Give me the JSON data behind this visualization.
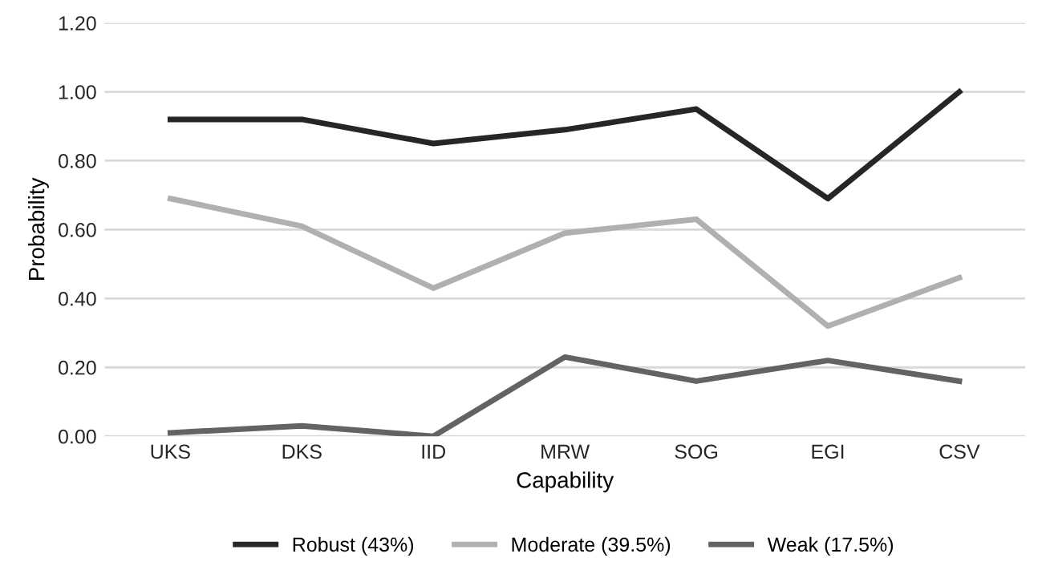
{
  "chart_data": {
    "type": "line",
    "xlabel": "Capability",
    "ylabel": "Probability",
    "categories": [
      "UKS",
      "DKS",
      "IID",
      "MRW",
      "SOG",
      "EGI",
      "CSV"
    ],
    "series": [
      {
        "name": "Robust (43%)",
        "color": "#262626",
        "values": [
          0.92,
          0.92,
          0.85,
          0.89,
          0.95,
          0.69,
          1.0
        ]
      },
      {
        "name": "Moderate (39.5%)",
        "color": "#b0b0b0",
        "values": [
          0.69,
          0.61,
          0.43,
          0.59,
          0.63,
          0.32,
          0.46
        ]
      },
      {
        "name": "Weak (17.5%)",
        "color": "#636363",
        "values": [
          0.01,
          0.03,
          0.0,
          0.23,
          0.16,
          0.22,
          0.16
        ]
      }
    ],
    "ylim": [
      0,
      1.2
    ],
    "yticks": [
      {
        "value": 0,
        "label": "0.00"
      },
      {
        "value": 0.2,
        "label": "0.20"
      },
      {
        "value": 0.4,
        "label": "0.40"
      },
      {
        "value": 0.6,
        "label": "0.60"
      },
      {
        "value": 0.8,
        "label": "0.80"
      },
      {
        "value": 1.0,
        "label": "1.00"
      },
      {
        "value": 1.2,
        "label": "1.20"
      }
    ],
    "grid": "y",
    "legend": "bottom",
    "marker": "none",
    "line_style": "solid"
  }
}
